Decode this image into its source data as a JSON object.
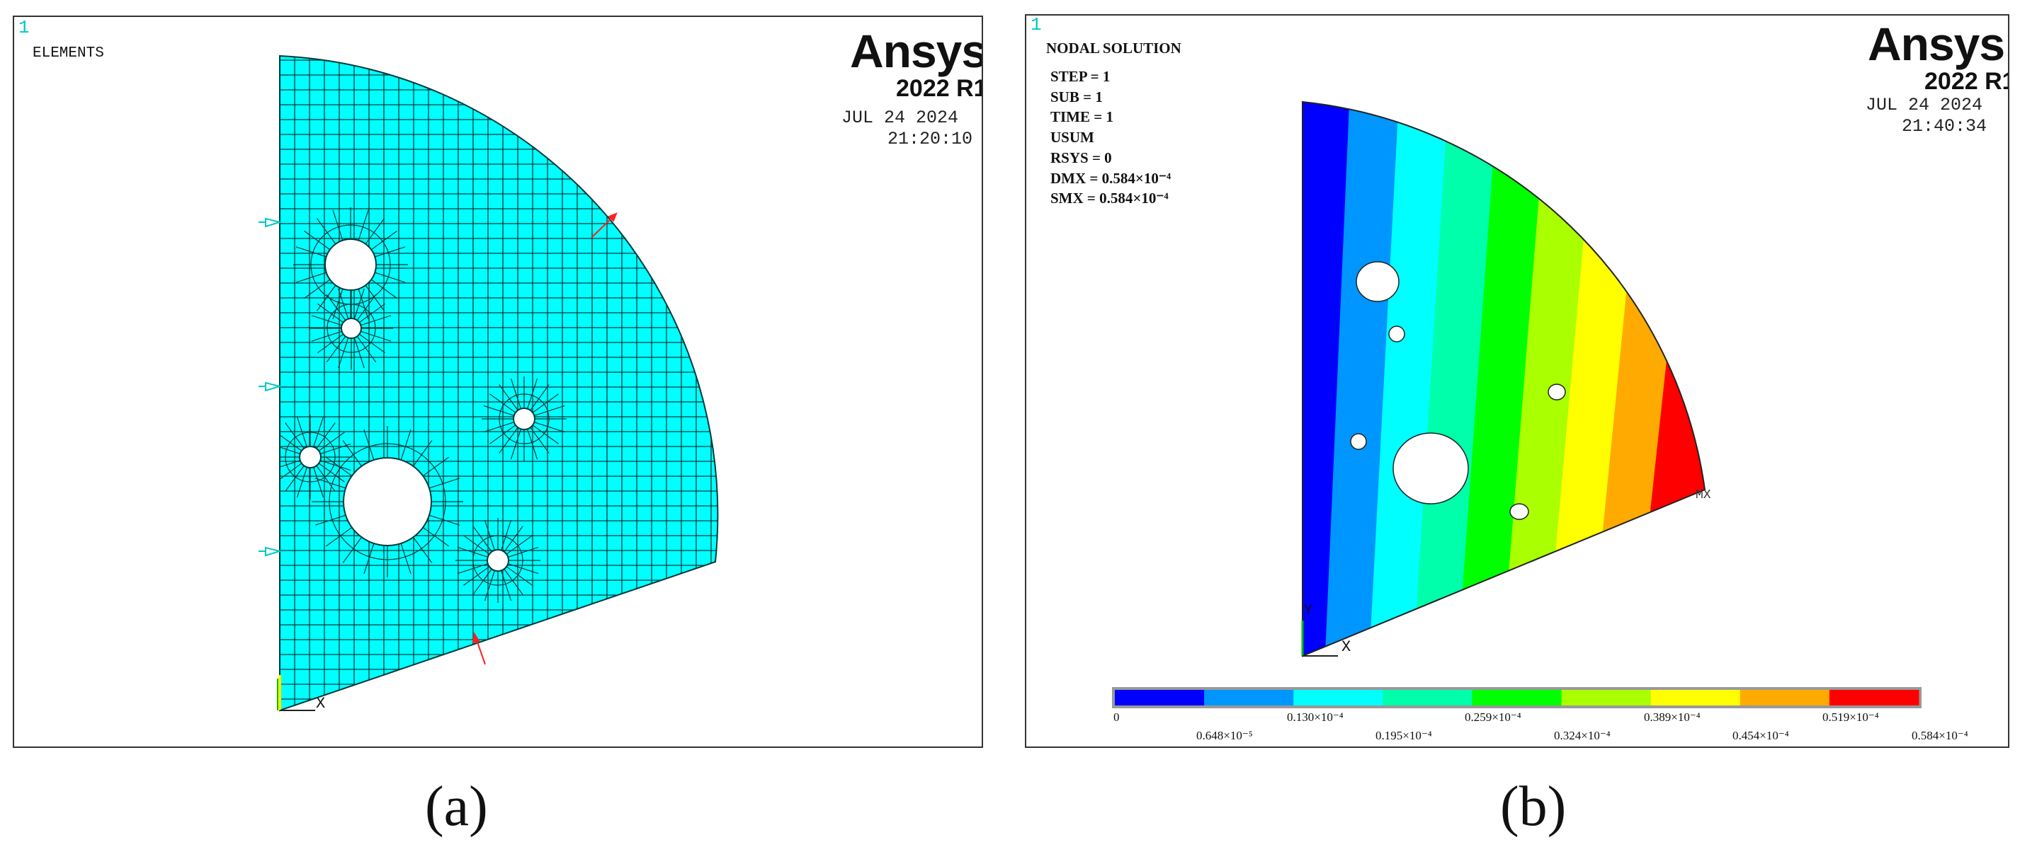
{
  "panel_a": {
    "window_number": "1",
    "title": "ELEMENTS",
    "brand": "Ansys",
    "version": "2022 R1",
    "date": "JUL 24 2024",
    "time": "21:20:10",
    "axis_x": "X",
    "caption": "(a)",
    "colors": {
      "mesh_fill": "#00ffff",
      "mesh_line": "#003a3a",
      "arrow": "#ff2020"
    }
  },
  "panel_b": {
    "window_number": "1",
    "title": "NODAL  SOLUTION",
    "info": [
      "STEP = 1",
      "SUB  = 1",
      "TIME = 1",
      "USUM",
      "RSYS = 0",
      "DMX  = 0.584×10⁻⁴",
      "SMX  = 0.584×10⁻⁴"
    ],
    "brand": "Ansys",
    "version": "2022 R1",
    "date": "JUL 24 2024",
    "time": "21:40:34",
    "axis_x": "X",
    "axis_y": "Y",
    "mx_label": "MX",
    "caption": "(b)",
    "legend": {
      "colors": [
        "#0000ff",
        "#0096ff",
        "#00ffff",
        "#00ffaa",
        "#00ff00",
        "#aaff00",
        "#ffff00",
        "#ffaa00",
        "#ff0000"
      ],
      "labels_top": [
        "0",
        "0.130×10⁻⁴",
        "0.259×10⁻⁴",
        "0.389×10⁻⁴",
        "0.519×10⁻⁴"
      ],
      "labels_bottom": [
        "0.648×10⁻⁵",
        "0.195×10⁻⁴",
        "0.324×10⁻⁴",
        "0.454×10⁻⁴",
        "0.584×10⁻⁴"
      ]
    }
  }
}
